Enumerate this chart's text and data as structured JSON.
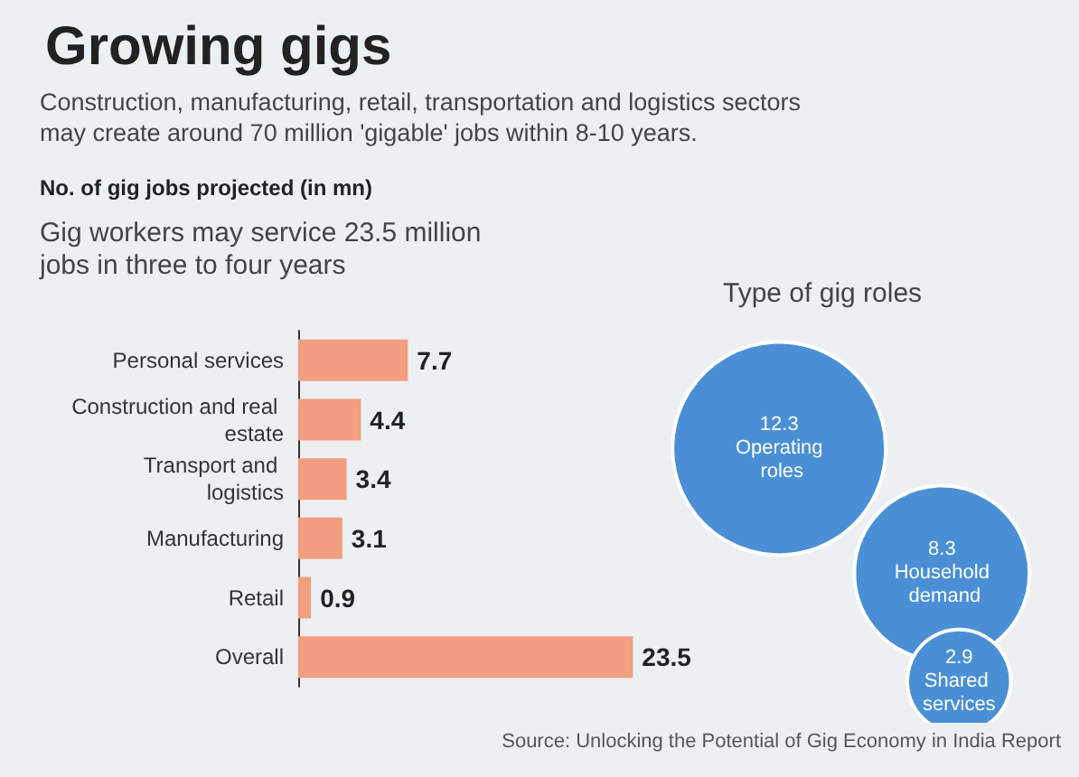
{
  "chart_data": [
    {
      "type": "bar",
      "orientation": "horizontal",
      "title": "Growing gigs",
      "subtitle": "Construction, manufacturing, retail, transportation and logistics sectors may create around 70 million 'gigable' jobs within 8-10 years.",
      "annotations": [
        "No. of gig jobs projected (in mn)",
        "Gig workers may service 23.5 million jobs in three to four years",
        "Source: Unlocking the Potential of Gig Economy in India Report"
      ],
      "categories": [
        "Personal services",
        "Construction and real estate",
        "Transport and logistics",
        "Manufacturing",
        "Retail",
        "Overall"
      ],
      "values": [
        7.7,
        4.4,
        3.4,
        3.1,
        0.9,
        23.5
      ],
      "color": "#f29e80",
      "data_labels": true,
      "tick_labels": "y"
    },
    {
      "type": "other",
      "title": "Type of gig roles",
      "categories": [
        "Operating roles",
        "Household demand",
        "Shared services"
      ],
      "values": [
        12.3,
        8.3,
        2.9
      ],
      "color": "#4a8fd6",
      "data_labels": true
    }
  ]
}
